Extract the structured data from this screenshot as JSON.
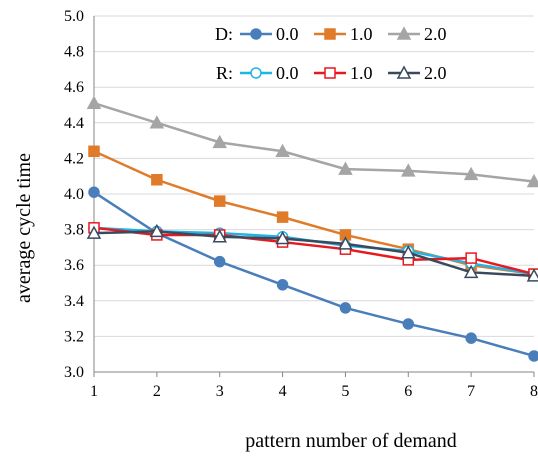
{
  "chart_data": {
    "type": "line",
    "xlabel": "pattern number of demand",
    "ylabel": "average cycle time",
    "x": [
      1,
      2,
      3,
      4,
      5,
      6,
      7,
      8
    ],
    "xticks": [
      "1",
      "2",
      "3",
      "4",
      "5",
      "6",
      "7",
      "8"
    ],
    "ylim": [
      3.0,
      5.0
    ],
    "yticks": [
      "3.0",
      "3.2",
      "3.4",
      "3.6",
      "3.8",
      "4.0",
      "4.2",
      "4.4",
      "4.6",
      "4.8",
      "5.0"
    ],
    "grid": "horizontal",
    "legend_groups": [
      {
        "label": "D:",
        "series": [
          0,
          1,
          2
        ]
      },
      {
        "label": "R:",
        "series": [
          3,
          4,
          5
        ]
      }
    ],
    "series": [
      {
        "group": "D",
        "name": "0.0",
        "color": "#4a7ebb",
        "marker": "circle",
        "filled": true,
        "values": [
          4.01,
          3.78,
          3.62,
          3.49,
          3.36,
          3.27,
          3.19,
          3.09
        ]
      },
      {
        "group": "D",
        "name": "1.0",
        "color": "#e07b2a",
        "marker": "square",
        "filled": true,
        "values": [
          4.24,
          4.08,
          3.96,
          3.87,
          3.77,
          3.69,
          3.6,
          3.55
        ]
      },
      {
        "group": "D",
        "name": "2.0",
        "color": "#a5a5a5",
        "marker": "triangle",
        "filled": true,
        "values": [
          4.51,
          4.4,
          4.29,
          4.24,
          4.14,
          4.13,
          4.11,
          4.07
        ]
      },
      {
        "group": "R",
        "name": "0.0",
        "color": "#1eb4e6",
        "marker": "circle",
        "filled": false,
        "values": [
          3.81,
          3.79,
          3.78,
          3.76,
          3.71,
          3.68,
          3.61,
          3.55
        ]
      },
      {
        "group": "R",
        "name": "1.0",
        "color": "#e8191e",
        "marker": "square",
        "filled": false,
        "values": [
          3.81,
          3.77,
          3.77,
          3.73,
          3.69,
          3.63,
          3.64,
          3.55
        ]
      },
      {
        "group": "R",
        "name": "2.0",
        "color": "#3a4a5e",
        "marker": "triangle",
        "filled": false,
        "values": [
          3.78,
          3.79,
          3.76,
          3.75,
          3.72,
          3.67,
          3.56,
          3.54
        ]
      }
    ]
  }
}
